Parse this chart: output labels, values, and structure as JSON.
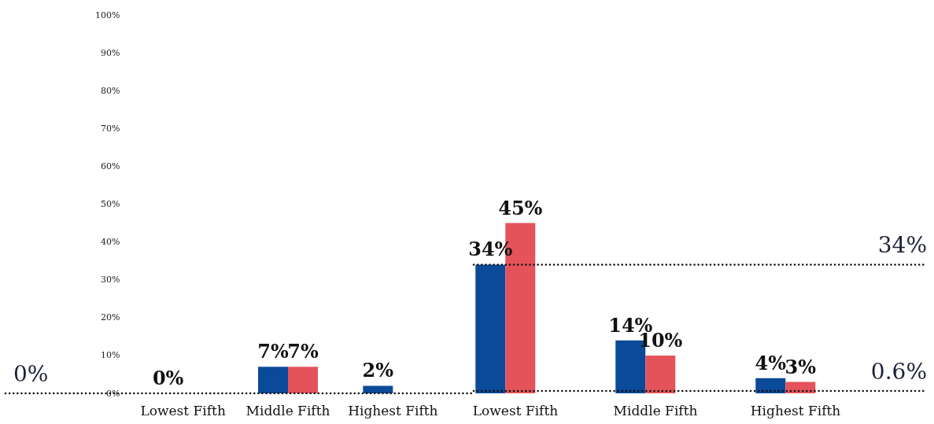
{
  "chart_data": [
    {
      "type": "bar",
      "categories": [
        "Lowest Fifth",
        "Middle Fifth",
        "Highest Fifth"
      ],
      "series": [
        {
          "color": "#0b4a98",
          "values": [
            0,
            7,
            2
          ],
          "value_labels": [
            "0%",
            "7%",
            "2%"
          ]
        },
        {
          "color": "#e4535a",
          "values": [
            0,
            7,
            0
          ],
          "value_labels": [
            null,
            "7%",
            null
          ]
        }
      ],
      "ylim": [
        0,
        100
      ],
      "yticks": [
        {
          "value": 0,
          "label": "0%"
        },
        {
          "value": 10,
          "label": "10%"
        },
        {
          "value": 20,
          "label": "20%"
        },
        {
          "value": 30,
          "label": "30%"
        },
        {
          "value": 40,
          "label": "40%"
        },
        {
          "value": 50,
          "label": "50%"
        },
        {
          "value": 60,
          "label": "60%"
        },
        {
          "value": 70,
          "label": "70%"
        },
        {
          "value": 80,
          "label": "80%"
        },
        {
          "value": 90,
          "label": "90%"
        },
        {
          "value": 100,
          "label": "100%"
        }
      ],
      "ref_lines": [
        {
          "axis": "y",
          "value": 0,
          "label": "0%",
          "line_style": "dotted"
        }
      ]
    },
    {
      "type": "bar",
      "categories": [
        "Lowest Fifth",
        "Middle Fifth",
        "Highest Fifth"
      ],
      "series": [
        {
          "color": "#0b4a98",
          "values": [
            34,
            14,
            4
          ],
          "value_labels": [
            "34%",
            "14%",
            "4%"
          ]
        },
        {
          "color": "#e4535a",
          "values": [
            45,
            10,
            3
          ],
          "value_labels": [
            "45%",
            "10%",
            "3%"
          ]
        }
      ],
      "ylim": [
        0,
        100
      ],
      "tick_labels": "x",
      "ref_lines": [
        {
          "axis": "y",
          "value": 34,
          "label": "34%",
          "line_style": "dotted"
        },
        {
          "axis": "y",
          "value": 0.6,
          "label": "0.6%",
          "line_style": "dotted"
        }
      ]
    }
  ]
}
